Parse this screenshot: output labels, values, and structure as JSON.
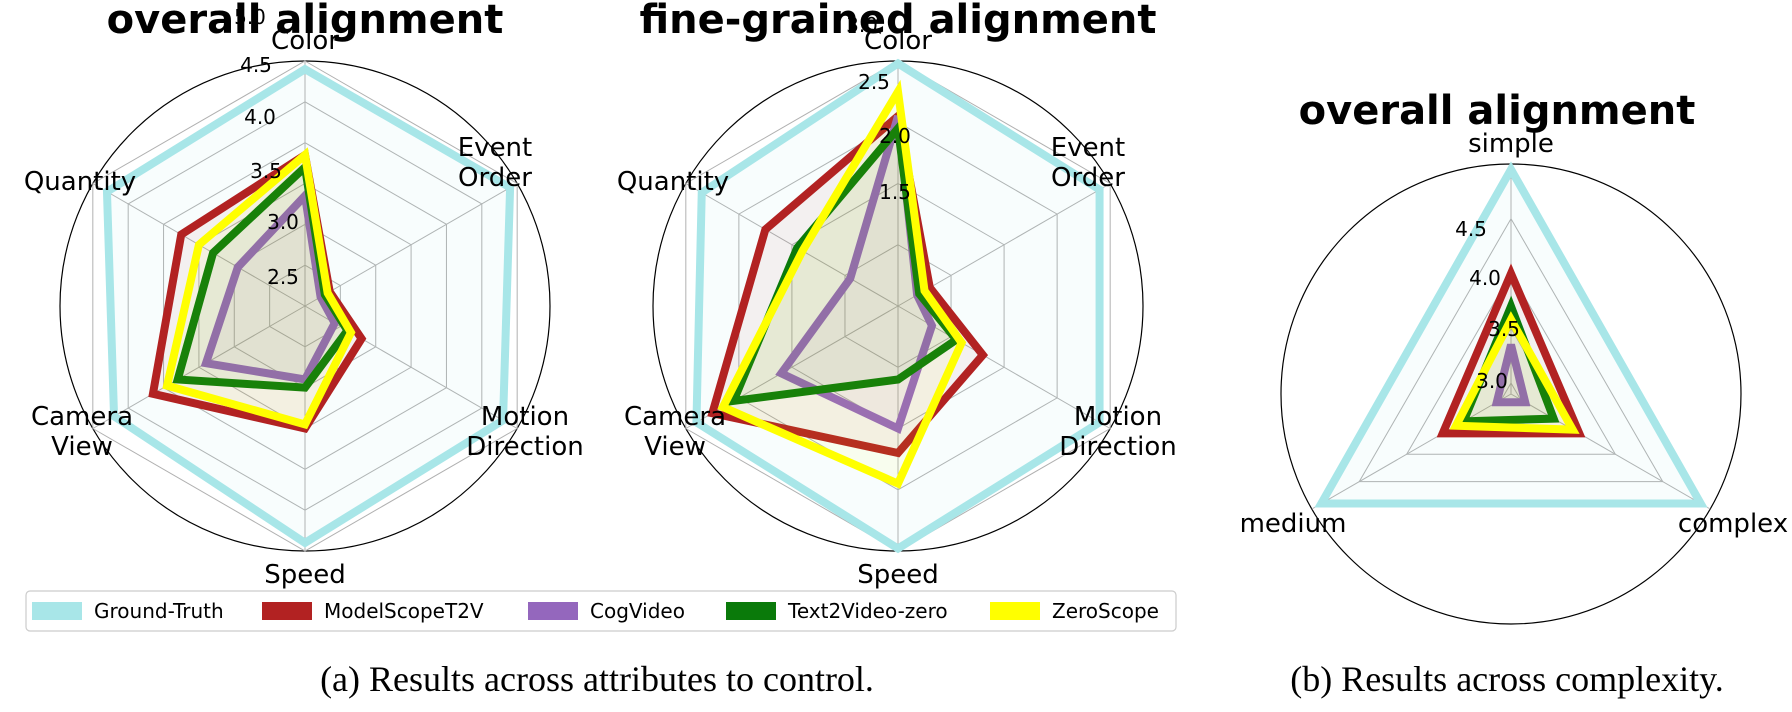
{
  "colors": {
    "Ground-Truth": "#a8e6e8",
    "ModelScopeT2V": "#b22222",
    "CogVideo": "#9467bd",
    "Text2Video-zero": "#0a7a0a",
    "ZeroScope": "#ffff00"
  },
  "legend": [
    "Ground-Truth",
    "ModelScopeT2V",
    "CogVideo",
    "Text2Video-zero",
    "ZeroScope"
  ],
  "captions": {
    "a": "(a) Results across attributes to control.",
    "b": "(b) Results across complexity."
  },
  "chart_data": [
    {
      "type": "radar",
      "title": "overall alignment",
      "axes": [
        "Color",
        "Event Order",
        "Motion Direction",
        "Speed",
        "Camera View",
        "Quantity"
      ],
      "rmin": 2.0,
      "rmax": 5.0,
      "ticks": [
        "2.5",
        "3.0",
        "3.5",
        "4.0",
        "4.5",
        "5.0"
      ],
      "grid_rings": [
        2.5,
        3.0,
        3.5,
        4.0,
        4.5,
        5.0
      ],
      "series": [
        {
          "name": "Ground-Truth",
          "values": [
            4.9,
            4.9,
            4.8,
            4.9,
            4.7,
            4.8
          ]
        },
        {
          "name": "ModelScopeT2V",
          "values": [
            3.85,
            2.35,
            2.8,
            3.5,
            4.15,
            3.75
          ]
        },
        {
          "name": "CogVideo",
          "values": [
            3.35,
            2.22,
            2.42,
            2.9,
            3.4,
            2.95
          ]
        },
        {
          "name": "Text2Video-zero",
          "values": [
            3.7,
            2.28,
            2.6,
            3.0,
            3.8,
            3.3
          ]
        },
        {
          "name": "ZeroScope",
          "values": [
            3.85,
            2.32,
            2.65,
            3.45,
            3.95,
            3.5
          ]
        }
      ]
    },
    {
      "type": "radar",
      "title": "fine-grained alignment",
      "axes": [
        "Color",
        "Event Order",
        "Motion Direction",
        "Speed",
        "Camera View",
        "Quantity"
      ],
      "rmin": 1.0,
      "rmax": 3.0,
      "ticks": [
        "1.5",
        "2.0",
        "2.5",
        "3.0"
      ],
      "grid_rings": [
        1.5,
        2.0,
        2.5,
        3.0
      ],
      "series": [
        {
          "name": "Ground-Truth",
          "values": [
            2.98,
            2.9,
            2.9,
            2.98,
            2.9,
            2.85
          ]
        },
        {
          "name": "ModelScopeT2V",
          "values": [
            2.55,
            1.3,
            1.8,
            2.2,
            2.75,
            2.25
          ]
        },
        {
          "name": "CogVideo",
          "values": [
            2.55,
            1.18,
            1.32,
            2.0,
            2.1,
            1.45
          ]
        },
        {
          "name": "Text2Video-zero",
          "values": [
            2.45,
            1.2,
            1.55,
            1.6,
            2.55,
            1.95
          ]
        },
        {
          "name": "ZeroScope",
          "values": [
            2.75,
            1.25,
            1.6,
            2.45,
            2.65,
            1.9
          ]
        }
      ]
    },
    {
      "type": "radar",
      "title": "overall alignment",
      "axes": [
        "simple",
        "complex",
        "medium"
      ],
      "rmin": 2.9,
      "rmax": 5.0,
      "ticks": [
        "3.0",
        "3.5",
        "4.0",
        "4.5"
      ],
      "grid_rings": [
        3.0,
        3.5,
        4.0,
        4.5
      ],
      "series": [
        {
          "name": "Ground-Truth",
          "values": [
            4.95,
            4.9,
            4.9
          ]
        },
        {
          "name": "ModelScopeT2V",
          "values": [
            4.0,
            3.62,
            3.62
          ]
        },
        {
          "name": "CogVideo",
          "values": [
            3.35,
            3.05,
            3.05
          ]
        },
        {
          "name": "Text2Video-zero",
          "values": [
            3.7,
            3.35,
            3.4
          ]
        },
        {
          "name": "ZeroScope",
          "values": [
            3.58,
            3.55,
            3.48
          ]
        }
      ]
    }
  ]
}
